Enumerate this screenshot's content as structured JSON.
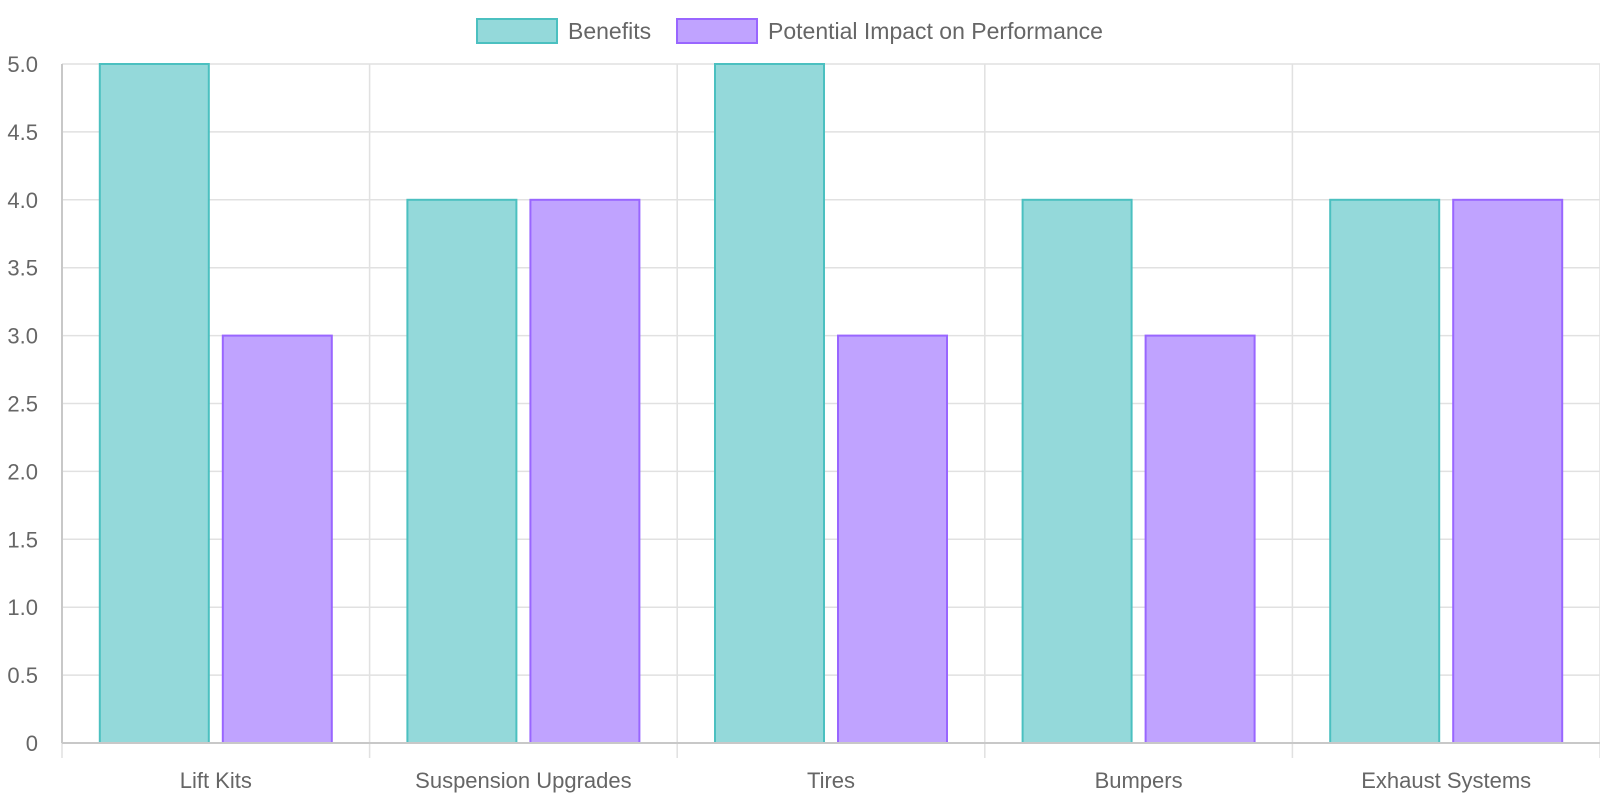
{
  "chart_data": {
    "type": "bar",
    "categories": [
      "Lift Kits",
      "Suspension Upgrades",
      "Tires",
      "Bumpers",
      "Exhaust Systems"
    ],
    "series": [
      {
        "name": "Benefits",
        "values": [
          5,
          4,
          5,
          4,
          4
        ],
        "fill": "#94d9da",
        "stroke": "#4bc0c0"
      },
      {
        "name": "Potential Impact on Performance",
        "values": [
          3,
          4,
          3,
          3,
          4
        ],
        "fill": "#c0a3ff",
        "stroke": "#9966ff"
      }
    ],
    "ylim": [
      0,
      5
    ],
    "yticks": [
      "0",
      "0.5",
      "1.0",
      "1.5",
      "2.0",
      "2.5",
      "3.0",
      "3.5",
      "4.0",
      "4.5",
      "5.0"
    ],
    "grid": true,
    "legend_position": "top-center",
    "colors": {
      "grid": "#e1e1e1",
      "axis": "#c8c8c8",
      "text": "#666666"
    }
  }
}
